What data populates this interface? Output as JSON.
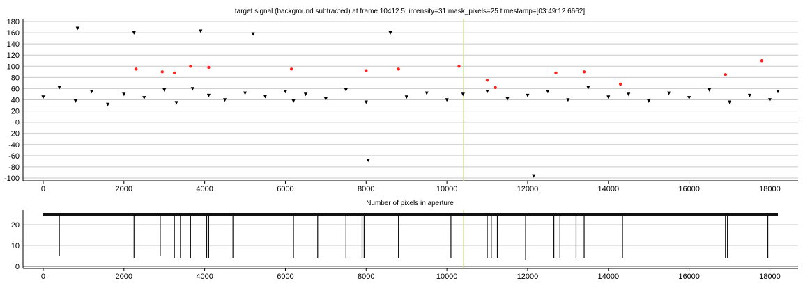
{
  "chart_data": [
    {
      "type": "scatter",
      "title": "target signal (background subtracted) at frame 10412.5: intensity=31 mask_pixels=25 timestamp=[03:49:12.6662]",
      "xlabel": "",
      "ylabel": "",
      "xlim": [
        -500,
        18700
      ],
      "ylim": [
        -105,
        185
      ],
      "x_ticks": [
        0,
        2000,
        4000,
        6000,
        8000,
        10000,
        12000,
        14000,
        16000,
        18000
      ],
      "y_ticks": [
        -100,
        -80,
        -60,
        -40,
        -20,
        0,
        20,
        40,
        60,
        80,
        100,
        120,
        140,
        160,
        180
      ],
      "x_tick_labels": [
        "0",
        "2000",
        "4000",
        "6000",
        "8000",
        "10000",
        "12000",
        "14000",
        "16000",
        "18000"
      ],
      "y_tick_labels": [
        "-100",
        "-80",
        "-60",
        "-40",
        "-20",
        "0",
        "20",
        "40",
        "60",
        "80",
        "100",
        "120",
        "140",
        "160",
        "180"
      ],
      "grid": true,
      "current_frame": 10412.5,
      "marker_color": "#000000",
      "highlight_color": "#ff2020",
      "cursor_color": "#c8dc82",
      "series": [
        {
          "points": [
            [
              0,
              45
            ],
            [
              400,
              62
            ],
            [
              800,
              38
            ],
            [
              850,
              168
            ],
            [
              1200,
              55
            ],
            [
              1600,
              32
            ],
            [
              2000,
              50
            ],
            [
              2250,
              160
            ],
            [
              2500,
              44
            ],
            [
              3000,
              58
            ],
            [
              3300,
              35
            ],
            [
              3700,
              60
            ],
            [
              3900,
              163
            ],
            [
              4100,
              48
            ],
            [
              4500,
              40
            ],
            [
              5000,
              52
            ],
            [
              5200,
              158
            ],
            [
              5500,
              46
            ],
            [
              6000,
              55
            ],
            [
              6200,
              38
            ],
            [
              6500,
              50
            ],
            [
              7000,
              42
            ],
            [
              7500,
              58
            ],
            [
              8000,
              36
            ],
            [
              8050,
              -68
            ],
            [
              8600,
              160
            ],
            [
              9000,
              45
            ],
            [
              9500,
              52
            ],
            [
              10000,
              40
            ],
            [
              10400,
              50
            ],
            [
              11000,
              55
            ],
            [
              11500,
              42
            ],
            [
              12000,
              48
            ],
            [
              12150,
              -96
            ],
            [
              12500,
              55
            ],
            [
              13000,
              40
            ],
            [
              13500,
              62
            ],
            [
              14000,
              45
            ],
            [
              14500,
              50
            ],
            [
              15000,
              38
            ],
            [
              15500,
              52
            ],
            [
              16000,
              44
            ],
            [
              16500,
              58
            ],
            [
              17000,
              36
            ],
            [
              17500,
              48
            ],
            [
              18000,
              40
            ],
            [
              18200,
              55
            ]
          ]
        },
        {
          "points": [
            [
              2300,
              95
            ],
            [
              2950,
              90
            ],
            [
              3250,
              88
            ],
            [
              3650,
              100
            ],
            [
              4100,
              98
            ],
            [
              6150,
              95
            ],
            [
              8000,
              92
            ],
            [
              8800,
              95
            ],
            [
              10300,
              100
            ],
            [
              11000,
              75
            ],
            [
              11200,
              62
            ],
            [
              12700,
              88
            ],
            [
              13400,
              90
            ],
            [
              14300,
              68
            ],
            [
              16900,
              85
            ],
            [
              17800,
              110
            ]
          ]
        }
      ]
    },
    {
      "type": "line",
      "title": "Number of pixels in aperture",
      "xlabel": "",
      "ylabel": "",
      "xlim": [
        -500,
        18700
      ],
      "ylim": [
        -1,
        27
      ],
      "x_ticks": [
        0,
        2000,
        4000,
        6000,
        8000,
        10000,
        12000,
        14000,
        16000,
        18000
      ],
      "y_ticks": [
        0,
        10,
        20
      ],
      "x_tick_labels": [
        "0",
        "2000",
        "4000",
        "6000",
        "8000",
        "10000",
        "12000",
        "14000",
        "16000",
        "18000"
      ],
      "y_tick_labels": [
        "0",
        "10",
        "20"
      ],
      "grid": true,
      "baseline": 25,
      "series": [
        {
          "dips": [
            [
              400,
              5
            ],
            [
              2250,
              4
            ],
            [
              2900,
              5
            ],
            [
              3250,
              4
            ],
            [
              3400,
              4
            ],
            [
              3650,
              4
            ],
            [
              4050,
              4
            ],
            [
              4100,
              4
            ],
            [
              4700,
              4
            ],
            [
              6200,
              4
            ],
            [
              6800,
              4
            ],
            [
              7500,
              4
            ],
            [
              7900,
              4
            ],
            [
              7950,
              4
            ],
            [
              8800,
              4
            ],
            [
              10100,
              4
            ],
            [
              11000,
              4
            ],
            [
              11100,
              4
            ],
            [
              11250,
              4
            ],
            [
              11950,
              3
            ],
            [
              12650,
              4
            ],
            [
              12800,
              4
            ],
            [
              13200,
              4
            ],
            [
              13400,
              4
            ],
            [
              14350,
              4
            ],
            [
              16900,
              4
            ],
            [
              16950,
              4
            ],
            [
              17950,
              4
            ]
          ]
        }
      ]
    }
  ]
}
